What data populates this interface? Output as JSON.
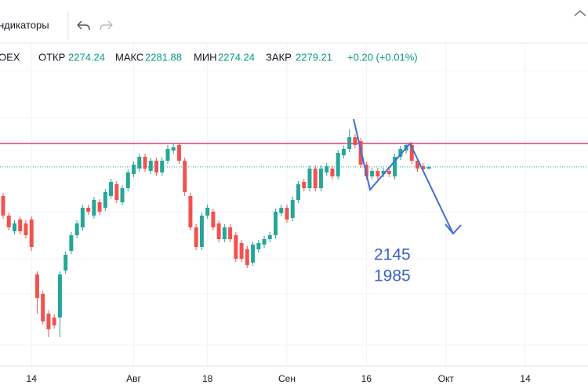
{
  "toolbar": {
    "indicators": "ндикаторы"
  },
  "chart_data": {
    "type": "candlestick",
    "symbol": "OEX",
    "ohlc_labels": [
      "ОТКР",
      "МАКС",
      "МИН",
      "ЗАКР"
    ],
    "change_label": "+0.20 (+0.01%)",
    "categories": [
      null,
      null,
      null,
      null,
      null,
      "14",
      null,
      null,
      null,
      null,
      null,
      null,
      null,
      null,
      null,
      null,
      null,
      null,
      null,
      null,
      null,
      null,
      null,
      "Авг",
      null,
      null,
      null,
      null,
      null,
      null,
      null,
      null,
      null,
      null,
      null,
      null,
      "18",
      null,
      null,
      null,
      null,
      null,
      null,
      null,
      null,
      null,
      null,
      null,
      null,
      null,
      "Сен",
      null,
      null,
      null,
      null,
      null,
      null,
      null,
      null,
      null,
      null,
      null,
      null,
      null,
      "16",
      null,
      null,
      null,
      null,
      null,
      null,
      null,
      null,
      null,
      null,
      null,
      null,
      null,
      "Окт",
      null,
      null,
      null,
      null,
      null,
      null,
      null,
      null,
      null,
      null,
      null,
      null,
      null,
      "14",
      null,
      null,
      null,
      null,
      null,
      null,
      null,
      null,
      null,
      null
    ],
    "open": [
      2205,
      2155,
      2115,
      2145,
      2135,
      2145,
      2005,
      1955,
      1905,
      1895,
      1895,
      2015,
      2065,
      2105,
      2125,
      2175,
      2155,
      2189,
      2175,
      2205,
      2235,
      2189,
      2225,
      2261,
      2275,
      2305,
      2269,
      2295,
      2265,
      2295,
      2321,
      2335,
      2295,
      2205,
      2125,
      2075,
      2155,
      2165,
      2135,
      2095,
      2125,
      2105,
      2085,
      2069,
      2035,
      2069,
      2081,
      2095,
      2105,
      2161,
      2175,
      2149,
      2195,
      2241,
      2225,
      2275,
      2225,
      2265,
      2275,
      2255,
      2309,
      2325,
      2355,
      2345,
      2285,
      2255,
      2269,
      2261,
      2269,
      2255,
      2305,
      2321,
      2335,
      2295,
      2281,
      2274.24,
      null,
      null,
      null,
      null,
      null,
      null,
      null,
      null,
      null,
      null,
      null,
      null,
      null,
      null,
      null,
      null,
      null,
      null,
      null,
      null,
      null,
      null,
      null,
      null,
      null,
      null,
      null
    ],
    "high": [
      2213,
      2163,
      2143,
      2153,
      2143,
      2153,
      2013,
      1963,
      1913,
      1903,
      2013,
      2063,
      2113,
      2143,
      2183,
      2183,
      2203,
      2197,
      2223,
      2249,
      2243,
      2233,
      2273,
      2293,
      2313,
      2313,
      2303,
      2303,
      2303,
      2335,
      2337,
      2341,
      2303,
      2213,
      2133,
      2163,
      2183,
      2173,
      2143,
      2133,
      2133,
      2113,
      2093,
      2077,
      2089,
      2093,
      2103,
      2113,
      2173,
      2183,
      2183,
      2203,
      2243,
      2249,
      2283,
      2283,
      2283,
      2289,
      2283,
      2323,
      2333,
      2375,
      2363,
      2353,
      2293,
      2277,
      2277,
      2277,
      2277,
      2313,
      2333,
      2341,
      2343,
      2303,
      2289,
      2281.88,
      null,
      null,
      null,
      null,
      null,
      null,
      null,
      null,
      null,
      null,
      null,
      null,
      null,
      null,
      null,
      null,
      null,
      null,
      null,
      null,
      null,
      null,
      null,
      null,
      null,
      null,
      null
    ],
    "low": [
      2147,
      2117,
      2107,
      2107,
      2097,
      2065,
      1905,
      1877,
      1845,
      1867,
      1845,
      2007,
      2057,
      2097,
      2117,
      2157,
      2147,
      2157,
      2167,
      2197,
      2187,
      2181,
      2217,
      2253,
      2267,
      2267,
      2261,
      2257,
      2257,
      2287,
      2313,
      2287,
      2205,
      2117,
      2067,
      2067,
      2147,
      2117,
      2087,
      2087,
      2087,
      2037,
      2037,
      2021,
      2027,
      2061,
      2073,
      2087,
      2097,
      2153,
      2137,
      2141,
      2187,
      2217,
      2217,
      2217,
      2217,
      2257,
      2247,
      2247,
      2301,
      2317,
      2327,
      2277,
      2247,
      2247,
      2247,
      2253,
      2253,
      2247,
      2297,
      2313,
      2287,
      2267,
      2265,
      2274.24,
      null,
      null,
      null,
      null,
      null,
      null,
      null,
      null,
      null,
      null,
      null,
      null,
      null,
      null,
      null,
      null,
      null,
      null,
      null,
      null,
      null,
      null,
      null,
      null,
      null,
      null,
      null
    ],
    "close": [
      2155,
      2125,
      2135,
      2115,
      2105,
      2075,
      1945,
      1885,
      1865,
      1875,
      2005,
      2055,
      2105,
      2135,
      2175,
      2165,
      2195,
      2165,
      2215,
      2241,
      2195,
      2225,
      2265,
      2285,
      2305,
      2275,
      2295,
      2265,
      2295,
      2325,
      2329,
      2295,
      2215,
      2125,
      2075,
      2155,
      2175,
      2125,
      2095,
      2125,
      2095,
      2045,
      2045,
      2029,
      2081,
      2085,
      2095,
      2105,
      2165,
      2175,
      2145,
      2195,
      2235,
      2225,
      2275,
      2225,
      2275,
      2281,
      2255,
      2315,
      2325,
      2355,
      2335,
      2285,
      2255,
      2269,
      2255,
      2269,
      2261,
      2305,
      2325,
      2335,
      2295,
      2275,
      2273,
      2279.21,
      null,
      null,
      null,
      null,
      null,
      null,
      null,
      null,
      null,
      null,
      null,
      null,
      null,
      null,
      null,
      null,
      null,
      null,
      null,
      null,
      null,
      null,
      null,
      null,
      null,
      null,
      null
    ],
    "up_color": "#26a69a",
    "down_color": "#ef5350",
    "ylim": [
      1765,
      2585
    ],
    "hline": 2339,
    "hline_color": "#d9476a",
    "annotations": [
      "2145",
      "1985"
    ]
  }
}
